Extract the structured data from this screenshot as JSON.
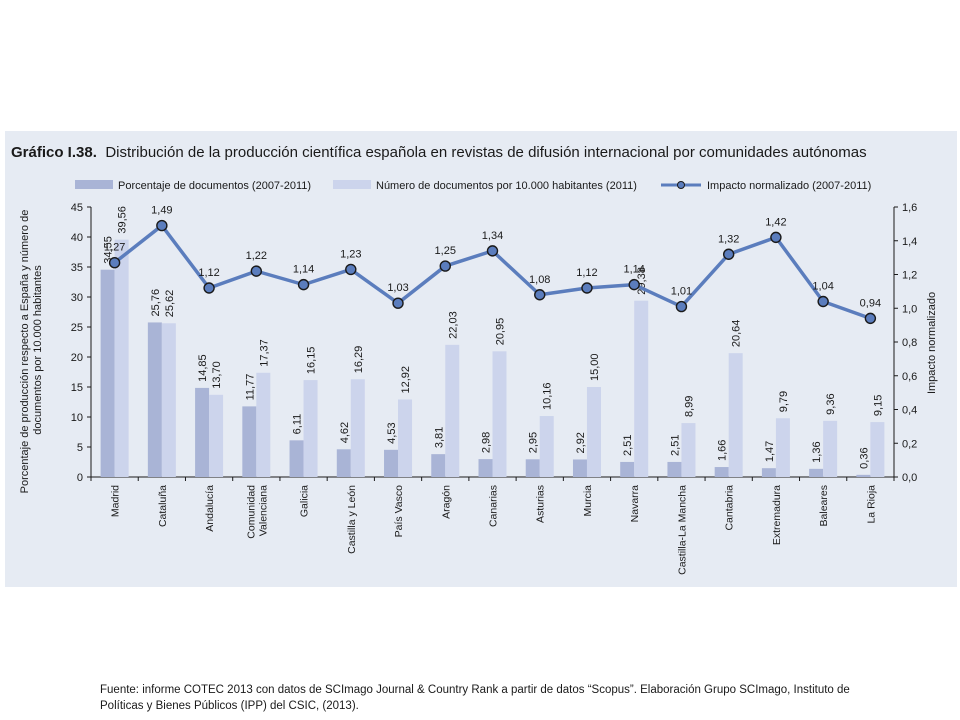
{
  "chart_data": {
    "type": "bar",
    "title_prefix": "Gráfico I.38.",
    "title": "Distribución de la producción científica española en revistas de difusión internacional por comunidades autónomas",
    "categories": [
      "Madrid",
      "Cataluña",
      "Andalucía",
      "Comunidad Valenciana",
      "Galicia",
      "Castilla y León",
      "País Vasco",
      "Aragón",
      "Canarias",
      "Asturias",
      "Murcia",
      "Navarra",
      "Castilla-La Mancha",
      "Cantabria",
      "Extremadura",
      "Baleares",
      "La Rioja"
    ],
    "series": [
      {
        "name": "Porcentaje de documentos (2007-2011)",
        "type": "bar",
        "axis": "left",
        "color": "#a9b4d6",
        "values": [
          34.55,
          25.76,
          14.85,
          11.77,
          6.11,
          4.62,
          4.53,
          3.81,
          2.98,
          2.95,
          2.92,
          2.51,
          2.51,
          1.66,
          1.47,
          1.36,
          0.36
        ],
        "labels": [
          "34,55",
          "25,76",
          "14,85",
          "11,77",
          "6,11",
          "4,62",
          "4,53",
          "3,81",
          "2,98",
          "2,95",
          "2,92",
          "2,51",
          "2,51",
          "1,66",
          "1,47",
          "1,36",
          "0,36"
        ]
      },
      {
        "name": "Número de documentos por 10.000 habitantes (2011)",
        "type": "bar",
        "axis": "left",
        "color": "#ccd4ec",
        "values": [
          39.56,
          25.62,
          13.7,
          17.37,
          16.15,
          16.29,
          12.92,
          22.03,
          20.95,
          10.16,
          15.0,
          29.38,
          8.99,
          20.64,
          9.79,
          9.36,
          9.15
        ],
        "labels": [
          "39,56",
          "25,62",
          "13,70",
          "17,37",
          "16,15",
          "16,29",
          "12,92",
          "22,03",
          "20,95",
          "10,16",
          "15,00",
          "29,38",
          "8,99",
          "20,64",
          "9,79",
          "9,36",
          "9,15"
        ]
      },
      {
        "name": "Impacto normalizado (2007-2011)",
        "type": "line",
        "axis": "right",
        "color": "#5b7dbd",
        "values": [
          1.27,
          1.49,
          1.12,
          1.22,
          1.14,
          1.23,
          1.03,
          1.25,
          1.34,
          1.08,
          1.12,
          1.14,
          1.01,
          1.32,
          1.42,
          1.04,
          0.94
        ],
        "labels": [
          "1,27",
          "1,49",
          "1,12",
          "1,22",
          "1,14",
          "1,23",
          "1,03",
          "1,25",
          "1,34",
          "1,08",
          "1,12",
          "1,14",
          "1,01",
          "1,32",
          "1,42",
          "1,04",
          "0,94"
        ]
      }
    ],
    "ylabel": "Porcentaje de producción respecto a España y número de documentos por 10.000 habitantes",
    "y2label": "Impacto normalizado",
    "ylim": [
      0,
      45
    ],
    "y2lim": [
      0,
      1.6
    ],
    "yticks": [
      "0",
      "5",
      "10",
      "15",
      "20",
      "25",
      "30",
      "35",
      "40",
      "45"
    ],
    "y2ticks": [
      "0,0",
      "0,2",
      "0,4",
      "0,6",
      "0,8",
      "1,0",
      "1,2",
      "1,4",
      "1,6"
    ],
    "legend_position": "top",
    "grid": false
  },
  "source_text": "Fuente: informe COTEC 2013  con datos de SCImago Journal & Country Rank a partir de datos “Scopus”. Elaboración Grupo SCImago, Instituto de Políticas y Bienes Públicos (IPP) del CSIC, (2013).",
  "colors": {
    "background": "#e6ebf3",
    "bar1": "#a9b4d6",
    "bar2": "#ccd4ec",
    "line": "#5b7dbd"
  }
}
